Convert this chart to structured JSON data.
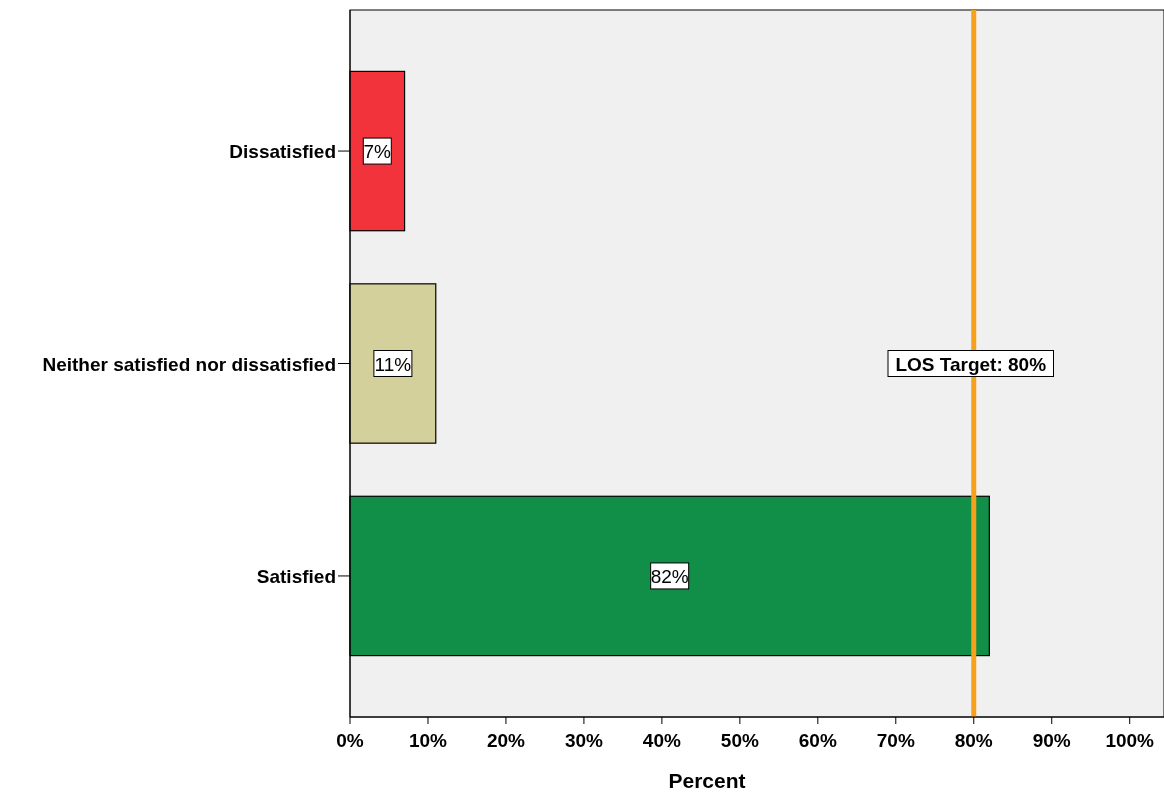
{
  "chart_data": {
    "type": "bar",
    "orientation": "horizontal",
    "xlabel": "Percent",
    "categories": [
      "Dissatisfied",
      "Neither satisfied nor dissatisfied",
      "Satisfied"
    ],
    "values": [
      7,
      11,
      82
    ],
    "colors": [
      "#f2333b",
      "#d4d09b",
      "#118e48"
    ],
    "data_labels": true,
    "value_labels": [
      "7%",
      "11%",
      "82%"
    ],
    "xlim": [
      0,
      104.4
    ],
    "xticks": [
      {
        "value": 0,
        "label": "0%"
      },
      {
        "value": 10,
        "label": "10%"
      },
      {
        "value": 20,
        "label": "20%"
      },
      {
        "value": 30,
        "label": "30%"
      },
      {
        "value": 40,
        "label": "40%"
      },
      {
        "value": 50,
        "label": "50%"
      },
      {
        "value": 60,
        "label": "60%"
      },
      {
        "value": 70,
        "label": "70%"
      },
      {
        "value": 80,
        "label": "80%"
      },
      {
        "value": 90,
        "label": "90%"
      },
      {
        "value": 100,
        "label": "100%"
      }
    ],
    "ref_lines": [
      {
        "axis": "x",
        "value": 80,
        "label": "LOS Target: 80%",
        "color": "#f7a11a"
      }
    ],
    "grid": false
  }
}
